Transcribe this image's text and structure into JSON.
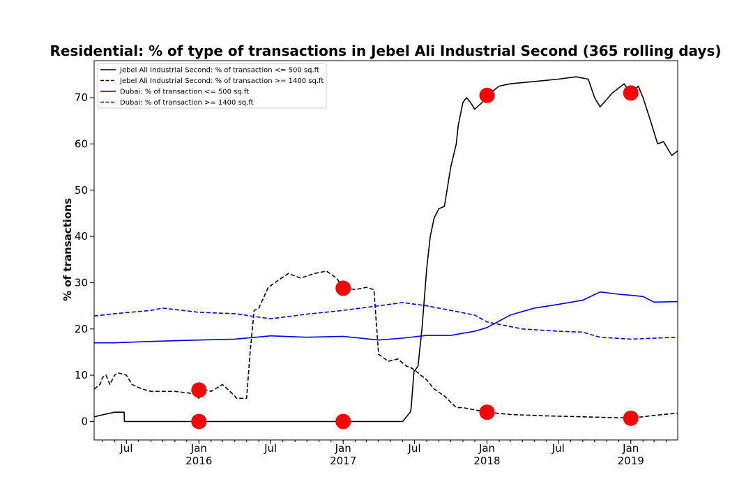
{
  "chart_data": {
    "type": "line",
    "title": "Residential: % of type of transactions in Jebel Ali Industrial Second (365 rolling days)",
    "xlabel": "",
    "ylabel": "% of transactions",
    "xlim": [
      "2015-04-10",
      "2019-04-30"
    ],
    "ylim": [
      -4,
      78
    ],
    "yticks": [
      0,
      10,
      20,
      30,
      40,
      50,
      60,
      70
    ],
    "xticks_major": [
      {
        "date": "2015-07-01",
        "label": "Jul",
        "sub": ""
      },
      {
        "date": "2016-01-01",
        "label": "Jan",
        "sub": "2016"
      },
      {
        "date": "2016-07-01",
        "label": "Jul",
        "sub": ""
      },
      {
        "date": "2017-01-01",
        "label": "Jan",
        "sub": "2017"
      },
      {
        "date": "2017-07-01",
        "label": "Jul",
        "sub": ""
      },
      {
        "date": "2018-01-01",
        "label": "Jan",
        "sub": "2018"
      },
      {
        "date": "2018-07-01",
        "label": "Jul",
        "sub": ""
      },
      {
        "date": "2019-01-01",
        "label": "Jan",
        "sub": "2019"
      }
    ],
    "grid": false,
    "legend_position": "top-left",
    "series": [
      {
        "name": "Jebel Ali Industrial Second: % of transaction <= 500 sq.ft",
        "color": "#000000",
        "style": "solid",
        "x": [
          "2015-04-10",
          "2015-05-05",
          "2015-06-01",
          "2015-06-25",
          "2015-06-26",
          "2015-09-01",
          "2016-01-01",
          "2016-06-01",
          "2017-01-01",
          "2017-06-01",
          "2017-06-20",
          "2017-06-22",
          "2017-06-30",
          "2017-07-02",
          "2017-07-10",
          "2017-07-20",
          "2017-08-01",
          "2017-08-10",
          "2017-08-20",
          "2017-09-01",
          "2017-09-15",
          "2017-10-01",
          "2017-10-15",
          "2017-10-20",
          "2017-11-01",
          "2017-11-10",
          "2017-11-20",
          "2017-12-01",
          "2017-12-20",
          "2018-01-01",
          "2018-02-01",
          "2018-03-01",
          "2018-05-01",
          "2018-07-01",
          "2018-08-15",
          "2018-09-15",
          "2018-10-01",
          "2018-10-15",
          "2018-11-15",
          "2018-12-15",
          "2019-01-01",
          "2019-01-20",
          "2019-02-01",
          "2019-02-20",
          "2019-03-10",
          "2019-03-25",
          "2019-04-15",
          "2019-04-30"
        ],
        "values": [
          1.0,
          1.5,
          2.0,
          2.0,
          0,
          0,
          0,
          0,
          0,
          0,
          2.0,
          2.5,
          11.0,
          11.0,
          12.0,
          20.0,
          33.0,
          40.0,
          44.0,
          46.0,
          46.5,
          55.0,
          60.0,
          64.0,
          69.0,
          70.0,
          69.0,
          67.5,
          69.0,
          70.5,
          72.5,
          73.0,
          73.5,
          74.0,
          74.5,
          74.0,
          70.0,
          68.0,
          71.0,
          73.0,
          71.0,
          72.5,
          70.0,
          65.0,
          60.0,
          60.5,
          57.5,
          58.5
        ]
      },
      {
        "name": "Jebel Ali Industrial Second: % of transaction >= 1400 sq.ft",
        "color": "#000000",
        "style": "dashed",
        "x": [
          "2015-04-10",
          "2015-04-25",
          "2015-05-01",
          "2015-05-10",
          "2015-05-20",
          "2015-06-01",
          "2015-06-10",
          "2015-07-01",
          "2015-07-15",
          "2015-08-10",
          "2015-09-01",
          "2015-11-01",
          "2015-12-20",
          "2016-01-01",
          "2016-01-10",
          "2016-02-01",
          "2016-03-01",
          "2016-04-01",
          "2016-04-05",
          "2016-05-01",
          "2016-05-10",
          "2016-05-20",
          "2016-06-01",
          "2016-06-25",
          "2016-07-20",
          "2016-08-15",
          "2016-09-15",
          "2016-10-20",
          "2016-11-20",
          "2016-12-15",
          "2017-01-01",
          "2017-02-01",
          "2017-03-01",
          "2017-03-20",
          "2017-04-01",
          "2017-04-10",
          "2017-04-25",
          "2017-05-20",
          "2017-06-10",
          "2017-06-25",
          "2017-07-10",
          "2017-08-01",
          "2017-08-20",
          "2017-09-15",
          "2017-10-15",
          "2017-11-01",
          "2017-12-01",
          "2018-01-01",
          "2018-03-01",
          "2018-06-01",
          "2018-09-01",
          "2018-12-01",
          "2019-01-01",
          "2019-02-01",
          "2019-03-01",
          "2019-04-30"
        ],
        "values": [
          7.0,
          8.0,
          9.5,
          10.0,
          8.0,
          10.0,
          10.5,
          10.0,
          8.0,
          7.0,
          6.5,
          6.5,
          6.0,
          5.0,
          7.0,
          6.5,
          8.0,
          5.5,
          5.0,
          5.0,
          15.0,
          24.0,
          24.5,
          29.0,
          30.5,
          32.0,
          31.0,
          32.0,
          32.5,
          31.0,
          29.0,
          28.5,
          29.0,
          28.5,
          14.5,
          14.0,
          13.0,
          13.5,
          12.0,
          11.5,
          10.5,
          9.0,
          7.0,
          5.5,
          3.0,
          3.0,
          2.5,
          2.0,
          1.5,
          1.2,
          1.0,
          0.8,
          0.8,
          1.0,
          1.3,
          1.8
        ]
      },
      {
        "name": "Dubai: % of transaction <= 500 sq.ft",
        "color": "#0000dd",
        "style": "solid",
        "x": [
          "2015-04-10",
          "2015-06-01",
          "2015-09-01",
          "2016-01-01",
          "2016-04-01",
          "2016-07-01",
          "2016-10-01",
          "2017-01-01",
          "2017-04-01",
          "2017-06-01",
          "2017-08-01",
          "2017-10-01",
          "2017-12-01",
          "2018-01-01",
          "2018-03-01",
          "2018-05-01",
          "2018-07-01",
          "2018-09-01",
          "2018-10-15",
          "2018-12-01",
          "2019-01-01",
          "2019-02-01",
          "2019-03-01",
          "2019-04-30"
        ],
        "values": [
          17.0,
          17.0,
          17.3,
          17.6,
          17.8,
          18.5,
          18.2,
          18.4,
          17.6,
          18.0,
          18.6,
          18.6,
          19.5,
          20.3,
          23.0,
          24.5,
          25.3,
          26.2,
          28.0,
          27.5,
          27.3,
          27.0,
          25.8,
          25.9
        ]
      },
      {
        "name": "Dubai: % of transaction >= 1400 sq.ft",
        "color": "#0000dd",
        "style": "dashed",
        "x": [
          "2015-04-10",
          "2015-06-01",
          "2015-09-01",
          "2015-10-01",
          "2016-01-01",
          "2016-04-01",
          "2016-07-01",
          "2016-10-01",
          "2017-01-01",
          "2017-04-01",
          "2017-06-01",
          "2017-08-01",
          "2017-10-01",
          "2017-12-01",
          "2018-01-01",
          "2018-04-01",
          "2018-07-01",
          "2018-09-01",
          "2018-10-15",
          "2019-01-01",
          "2019-04-30"
        ],
        "values": [
          22.8,
          23.3,
          24.0,
          24.5,
          23.6,
          23.3,
          22.2,
          23.2,
          24.0,
          25.0,
          25.7,
          25.0,
          24.0,
          23.0,
          21.5,
          20.0,
          19.5,
          19.3,
          18.2,
          17.8,
          18.2
        ]
      }
    ],
    "markers": {
      "color": "#ff0000",
      "points": [
        {
          "x": "2016-01-01",
          "y": 6.8
        },
        {
          "x": "2016-01-01",
          "y": 0
        },
        {
          "x": "2017-01-01",
          "y": 0
        },
        {
          "x": "2017-01-01",
          "y": 28.8
        },
        {
          "x": "2018-01-01",
          "y": 70.5
        },
        {
          "x": "2018-01-01",
          "y": 2.0
        },
        {
          "x": "2019-01-01",
          "y": 71.0
        },
        {
          "x": "2019-01-01",
          "y": 0.7
        }
      ]
    }
  }
}
